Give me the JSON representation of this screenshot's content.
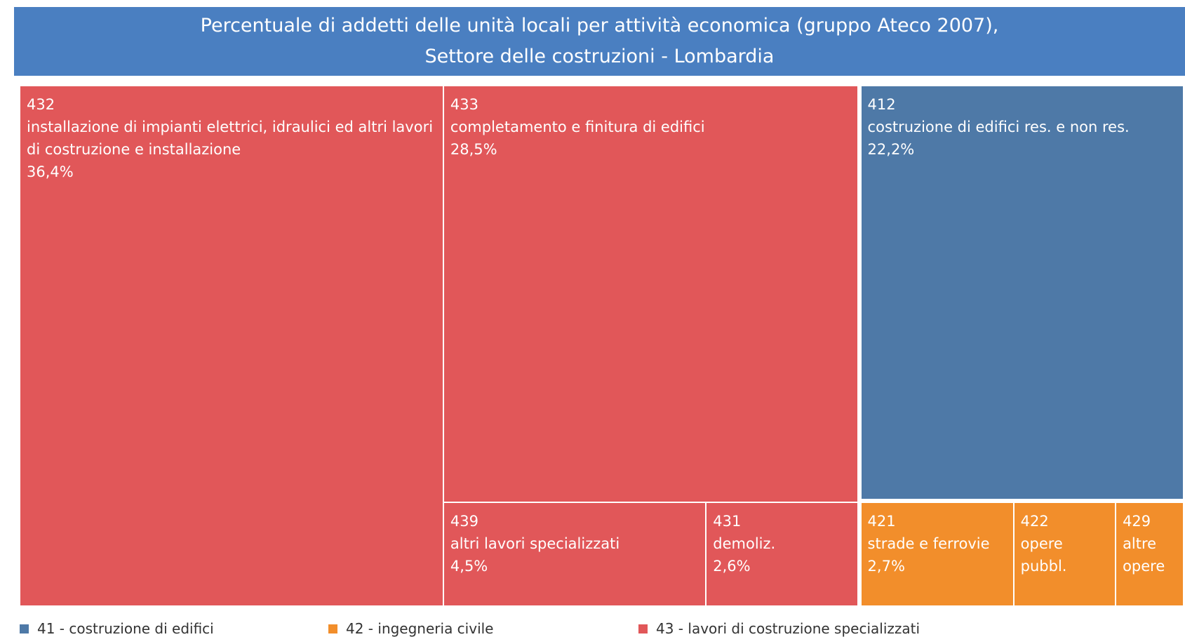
{
  "chart_data": {
    "type": "treemap",
    "title": [
      "Percentuale di addetti delle unità locali per attività economica (gruppo Ateco 2007),",
      "Settore delle costruzioni - Lombardia"
    ],
    "series": [
      {
        "name": "41 - costruzione di edifici",
        "color": "#4e79a7",
        "codes": [
          "412"
        ],
        "labels": [
          "costruzione di edifici res. e non res."
        ],
        "values": [
          22.2
        ],
        "value_labels": [
          "22,2%"
        ]
      },
      {
        "name": "42 - ingegneria civile",
        "color": "#f28e2b",
        "codes": [
          "421",
          "422",
          "429"
        ],
        "labels": [
          "strade e ferrovie",
          "opere pubbl.",
          "altre opere"
        ],
        "values": [
          2.7,
          1.8,
          1.2
        ],
        "value_labels": [
          "2,7%",
          null,
          null
        ]
      },
      {
        "name": "43 - lavori di costruzione specializzati",
        "color": "#e15759",
        "codes": [
          "432",
          "433",
          "439",
          "431"
        ],
        "labels": [
          "installazione di impianti elettrici, idraulici ed altri lavori di costruzione e installazione",
          "completamento e finitura di edifici",
          "altri lavori specializzati",
          "demoliz."
        ],
        "values": [
          36.4,
          28.5,
          4.5,
          2.6
        ],
        "value_labels": [
          "36,4%",
          "28,5%",
          "4,5%",
          "2,6%"
        ]
      }
    ]
  }
}
